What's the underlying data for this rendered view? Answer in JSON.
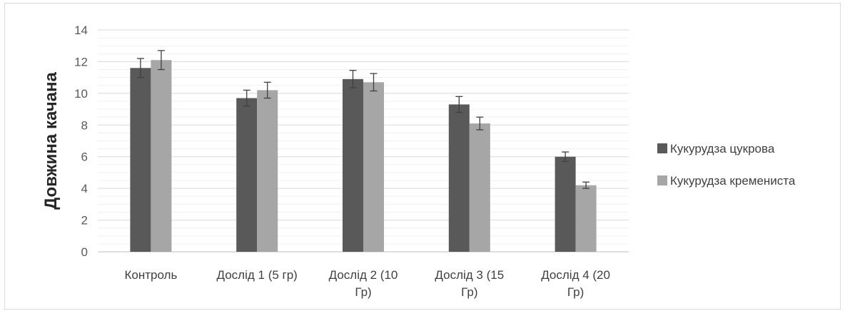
{
  "chart_data": {
    "type": "bar",
    "title": "",
    "xlabel": "",
    "ylabel": "Довжина качана",
    "ylim": [
      0,
      14
    ],
    "y_ticks": [
      0,
      2,
      4,
      6,
      8,
      10,
      12,
      14
    ],
    "grid": true,
    "legend_position": "right",
    "categories": [
      [
        "Контроль"
      ],
      [
        "Дослід 1 (5 гр)"
      ],
      [
        "Дослід 2 (10",
        "Гр)"
      ],
      [
        "Дослід 3 (15",
        "Гр)"
      ],
      [
        "Дослід 4 (20",
        "Гр)"
      ]
    ],
    "series": [
      {
        "name": "Кукурудза цукрова",
        "color": "#595959",
        "values": [
          11.6,
          9.7,
          10.9,
          9.3,
          6.0
        ],
        "errors": [
          0.6,
          0.5,
          0.55,
          0.5,
          0.3
        ]
      },
      {
        "name": "Кукурудза крemениста",
        "color": "#a6a6a6",
        "values": [
          12.1,
          10.2,
          10.7,
          8.1,
          4.2
        ],
        "errors": [
          0.6,
          0.5,
          0.55,
          0.4,
          0.2
        ]
      }
    ]
  }
}
